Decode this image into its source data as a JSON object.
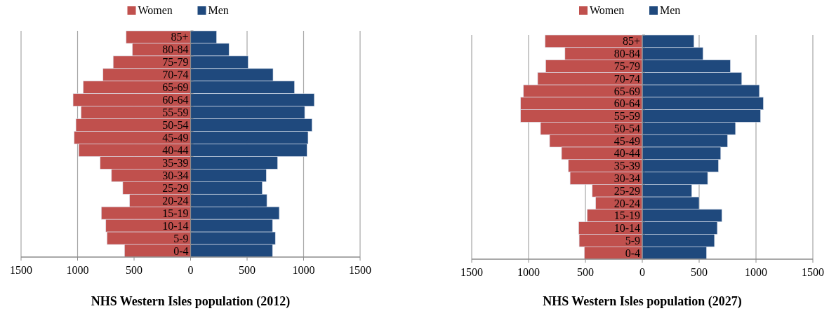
{
  "chart_data": [
    {
      "type": "bar",
      "orientation": "horizontal",
      "stacked": true,
      "title": "NHS Western Isles population (2012)",
      "categories": [
        "85+",
        "80-84",
        "75-79",
        "70-74",
        "65-69",
        "60-64",
        "55-59",
        "50-54",
        "45-49",
        "40-44",
        "35-39",
        "30-34",
        "25-29",
        "20-24",
        "15-19",
        "10-14",
        "5-9",
        "0-4"
      ],
      "series": [
        {
          "name": "Women",
          "color": "#c0504d",
          "values": [
            -570,
            -515,
            -685,
            -775,
            -950,
            -1040,
            -970,
            -1015,
            -1030,
            -990,
            -800,
            -700,
            -600,
            -540,
            -790,
            -750,
            -740,
            -585
          ]
        },
        {
          "name": "Men",
          "color": "#1f497d",
          "values": [
            230,
            340,
            510,
            730,
            920,
            1095,
            1010,
            1075,
            1040,
            1030,
            770,
            670,
            635,
            675,
            785,
            725,
            750,
            725
          ]
        }
      ],
      "xlim": [
        -1500,
        1500
      ],
      "xticks": [
        {
          "value": -1500,
          "label": "1500"
        },
        {
          "value": -1000,
          "label": "1000"
        },
        {
          "value": -500,
          "label": "500"
        },
        0,
        500,
        1000,
        1500
      ],
      "grid": "x",
      "legend": "top"
    },
    {
      "type": "bar",
      "orientation": "horizontal",
      "stacked": true,
      "title": "NHS Western Isles population (2027)",
      "categories": [
        "85+",
        "80-84",
        "75-79",
        "70-74",
        "65-69",
        "60-64",
        "55-59",
        "50-54",
        "45-49",
        "40-44",
        "35-39",
        "30-34",
        "25-29",
        "20-24",
        "15-19",
        "10-14",
        "5-9",
        "0-4"
      ],
      "series": [
        {
          "name": "Women",
          "color": "#c0504d",
          "values": [
            -855,
            -680,
            -850,
            -920,
            -1045,
            -1070,
            -1070,
            -895,
            -815,
            -710,
            -650,
            -635,
            -440,
            -410,
            -485,
            -560,
            -555,
            -510
          ]
        },
        {
          "name": "Men",
          "color": "#1f497d",
          "values": [
            455,
            535,
            775,
            875,
            1030,
            1065,
            1040,
            820,
            750,
            690,
            670,
            575,
            435,
            500,
            700,
            660,
            635,
            565
          ]
        }
      ],
      "xlim": [
        -1500,
        1500
      ],
      "xticks": [
        {
          "value": -1500,
          "label": "1500"
        },
        {
          "value": -1000,
          "label": "1000"
        },
        {
          "value": -500,
          "label": "500"
        },
        0,
        500,
        1000,
        1500
      ],
      "grid": "x",
      "legend": "top"
    }
  ]
}
